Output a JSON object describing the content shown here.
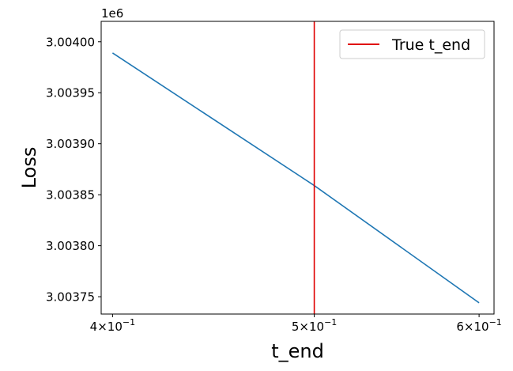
{
  "chart_data": {
    "type": "line",
    "xlabel": "t_end",
    "ylabel": "Loss",
    "x_scale": "log",
    "y_offset_label": "1e6",
    "xlim": [
      0.395,
      0.61
    ],
    "ylim": [
      3003733,
      3004020
    ],
    "x_ticks": [
      {
        "value": 0.4,
        "mantissa": "4",
        "base": "10",
        "exponent": "−1"
      },
      {
        "value": 0.5,
        "mantissa": "5",
        "base": "10",
        "exponent": "−1"
      },
      {
        "value": 0.6,
        "mantissa": "6",
        "base": "10",
        "exponent": "−1"
      }
    ],
    "y_ticks": [
      {
        "value": 3003750,
        "label": "3.00375"
      },
      {
        "value": 3003800,
        "label": "3.00380"
      },
      {
        "value": 3003850,
        "label": "3.00385"
      },
      {
        "value": 3003900,
        "label": "3.00390"
      },
      {
        "value": 3003950,
        "label": "3.00395"
      },
      {
        "value": 3004000,
        "label": "3.00400"
      }
    ],
    "series": [
      {
        "color": "#1f77b4",
        "x": [
          0.4,
          0.5,
          0.6
        ],
        "y": [
          3003989,
          3003859,
          3003744
        ]
      }
    ],
    "reference_lines": [
      {
        "name": "True t_end",
        "orientation": "vertical",
        "x": 0.5,
        "color": "#e00000"
      }
    ],
    "legend": {
      "position": "top-right",
      "entries": [
        {
          "label": "True t_end",
          "color": "#e00000"
        }
      ]
    },
    "grid": false
  }
}
